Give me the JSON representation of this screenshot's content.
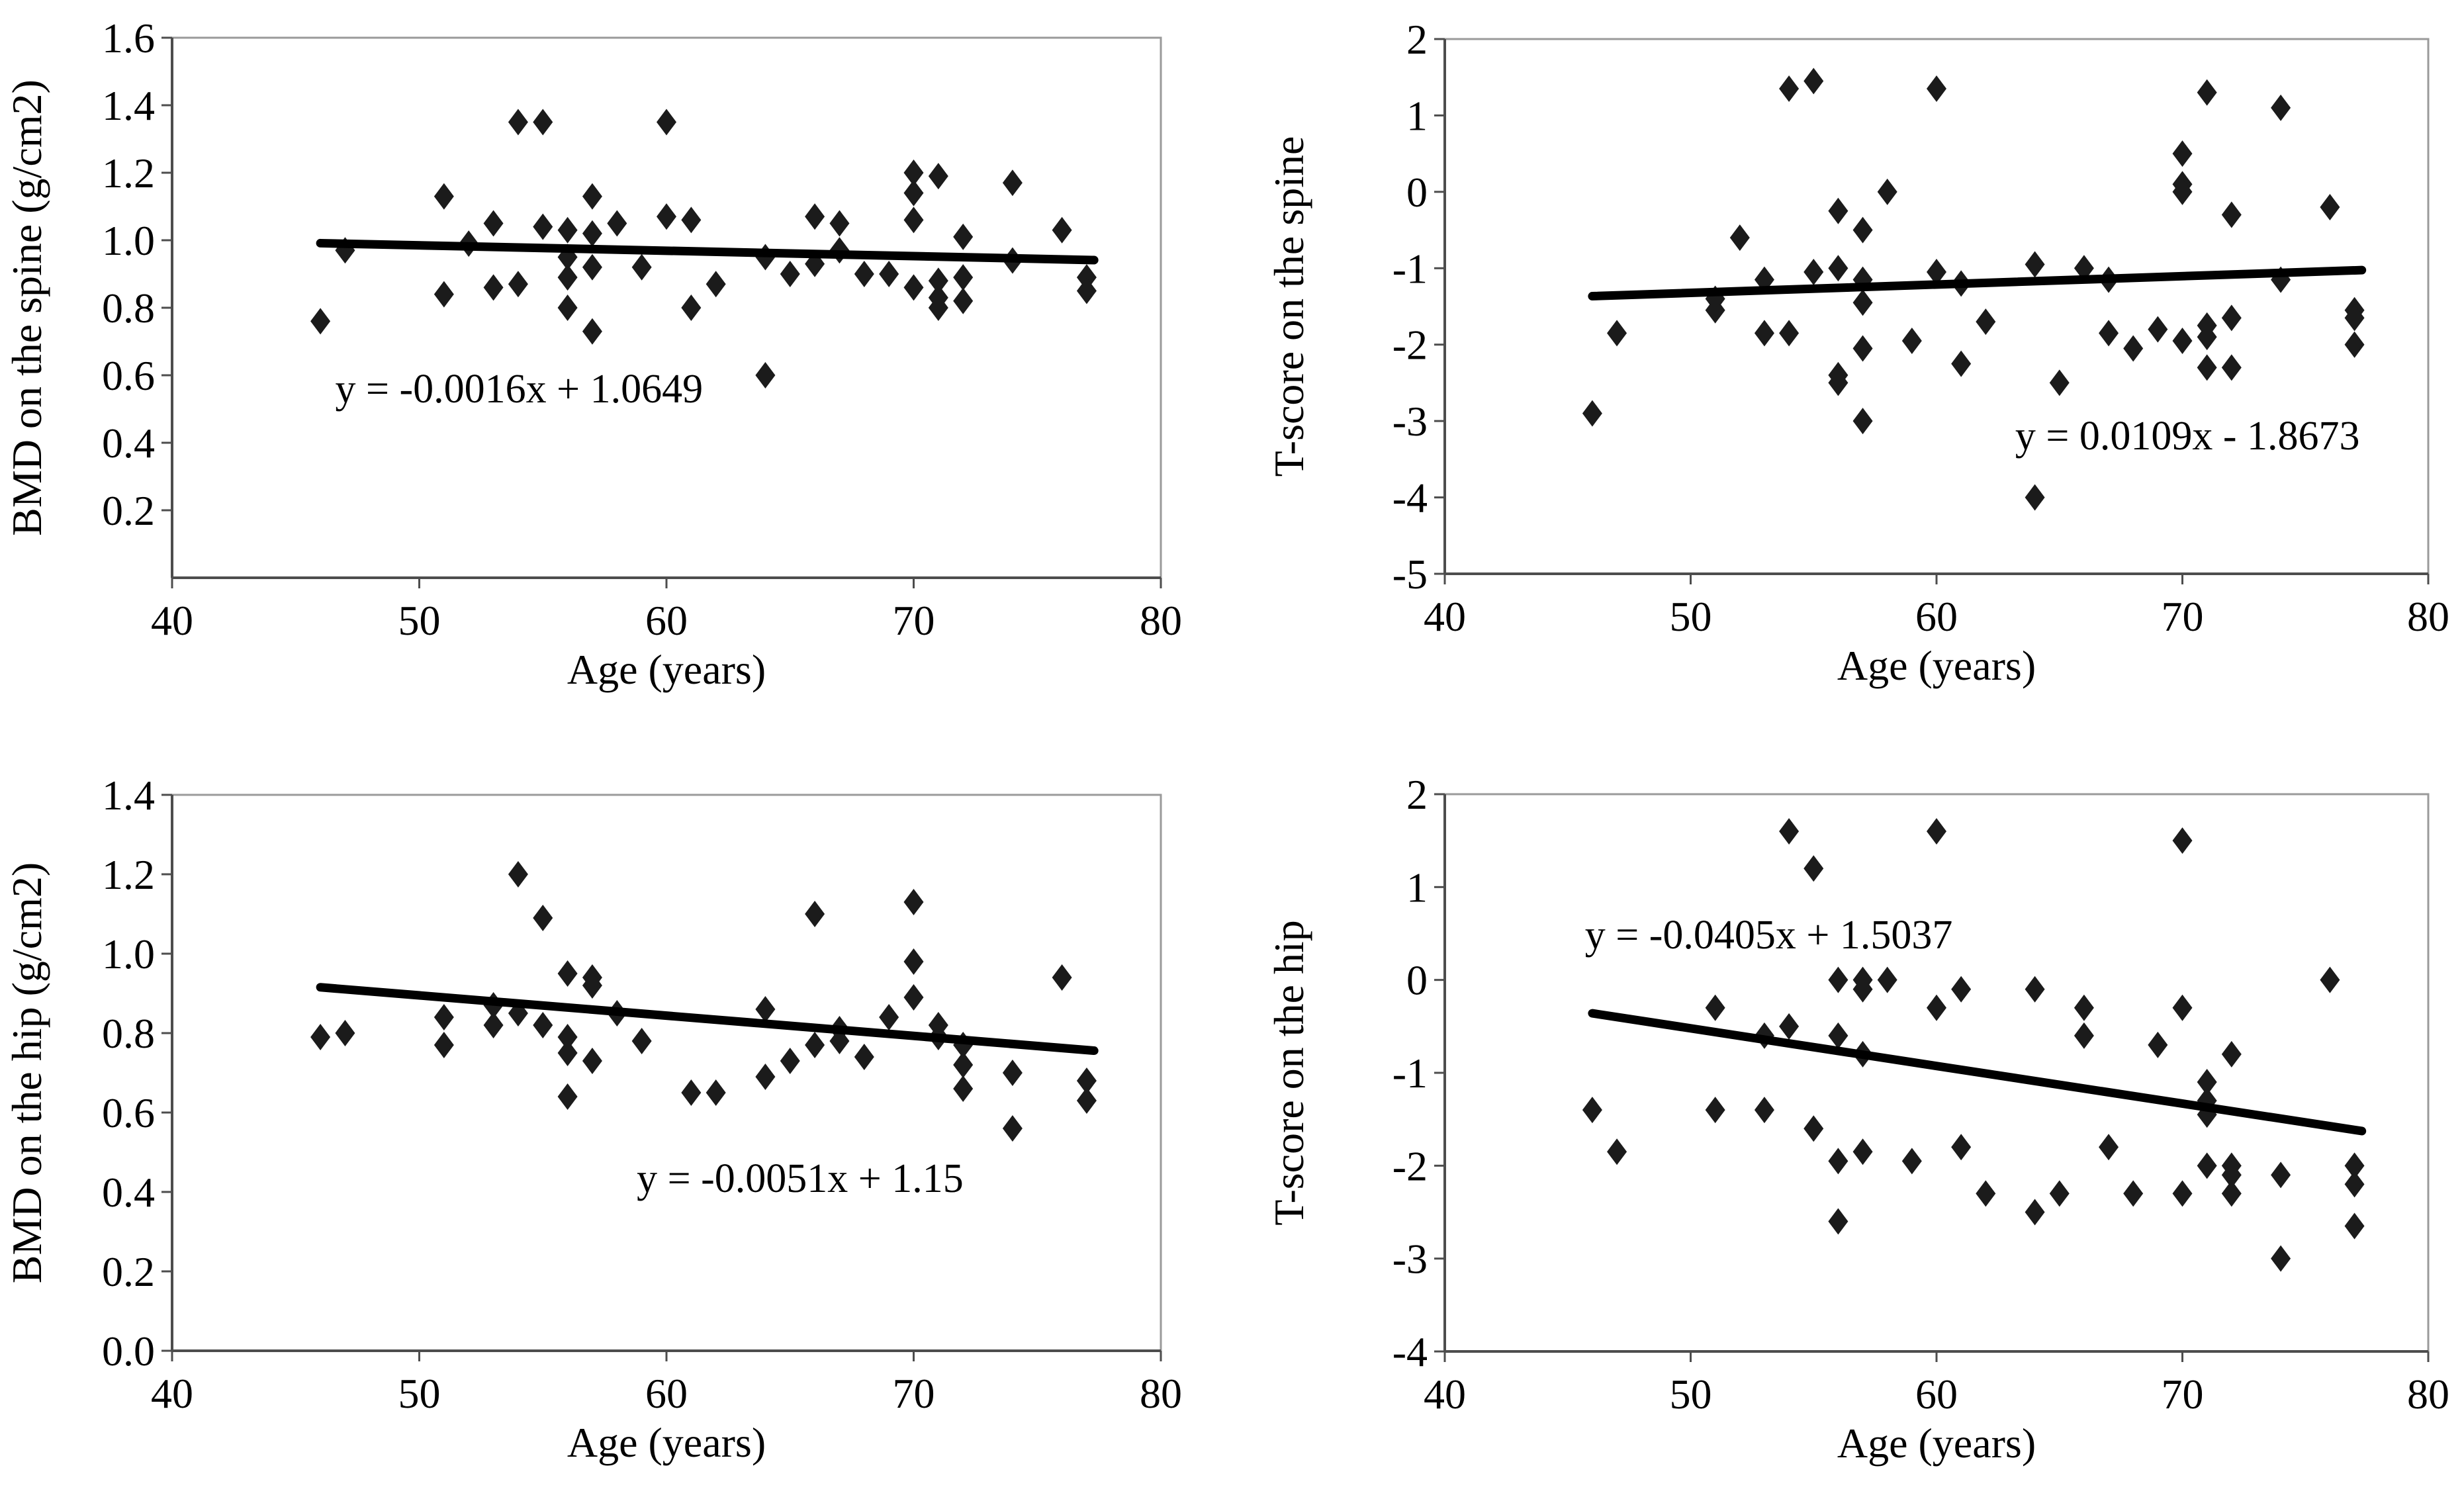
{
  "page": {
    "background": "#ffffff"
  },
  "colors": {
    "marker": "#1b1b1b",
    "trendline": "#000000",
    "plot_border": "#9a9a9a",
    "axis": "#4d4d4d",
    "tick": "#4d4d4d",
    "text": "#000000"
  },
  "chart_data": [
    {
      "id": "bmd_spine",
      "type": "scatter",
      "title": "",
      "xlabel": "Age (years)",
      "ylabel": "BMD on the spine (g/cm2)",
      "xlim": [
        40,
        80
      ],
      "ylim": [
        0,
        1.6
      ],
      "xticks": [
        40,
        50,
        60,
        70,
        80
      ],
      "xtick_labels": [
        "40",
        "50",
        "60",
        "70",
        "80"
      ],
      "yticks": [
        0.2,
        0.4,
        0.6,
        0.8,
        1.0,
        1.2,
        1.4,
        1.6
      ],
      "ytick_labels": [
        "0.2",
        "0.4",
        "0.6",
        "0.8",
        "1.0",
        "1.2",
        "1.4",
        "1.6"
      ],
      "grid": false,
      "legend": "none",
      "equation": {
        "text": "y = -0.0016x + 1.0649",
        "x": 46.6,
        "y": 0.52
      },
      "trendline": {
        "slope": -0.0016,
        "intercept": 1.0649,
        "x1": 46,
        "x2": 77.3
      },
      "points": [
        [
          46,
          0.76
        ],
        [
          47,
          0.97
        ],
        [
          51,
          1.13
        ],
        [
          51,
          0.84
        ],
        [
          52,
          0.99
        ],
        [
          53,
          1.05
        ],
        [
          53,
          0.86
        ],
        [
          54,
          1.35
        ],
        [
          54,
          0.87
        ],
        [
          55,
          1.35
        ],
        [
          55,
          1.04
        ],
        [
          56,
          1.03
        ],
        [
          56,
          0.95
        ],
        [
          56,
          0.89
        ],
        [
          56,
          0.8
        ],
        [
          57,
          1.13
        ],
        [
          57,
          1.02
        ],
        [
          57,
          0.92
        ],
        [
          57,
          0.73
        ],
        [
          58,
          1.05
        ],
        [
          59,
          0.92
        ],
        [
          60,
          1.35
        ],
        [
          60,
          1.07
        ],
        [
          61,
          1.06
        ],
        [
          61,
          0.8
        ],
        [
          62,
          0.87
        ],
        [
          64,
          0.95
        ],
        [
          64,
          0.6
        ],
        [
          65,
          0.9
        ],
        [
          66,
          1.07
        ],
        [
          66,
          0.93
        ],
        [
          67,
          1.05
        ],
        [
          67,
          0.97
        ],
        [
          68,
          0.9
        ],
        [
          69,
          0.9
        ],
        [
          70,
          1.2
        ],
        [
          70,
          1.14
        ],
        [
          70,
          1.06
        ],
        [
          70,
          0.86
        ],
        [
          71,
          1.19
        ],
        [
          71,
          0.88
        ],
        [
          71,
          0.83
        ],
        [
          71,
          0.8
        ],
        [
          72,
          1.01
        ],
        [
          72,
          0.89
        ],
        [
          72,
          0.82
        ],
        [
          74,
          1.17
        ],
        [
          74,
          0.94
        ],
        [
          76,
          1.03
        ],
        [
          77,
          0.89
        ],
        [
          77,
          0.85
        ]
      ]
    },
    {
      "id": "tscore_spine",
      "type": "scatter",
      "title": "",
      "xlabel": "Age (years)",
      "ylabel": "T-score on the spine",
      "xlim": [
        40,
        80
      ],
      "ylim": [
        -5,
        2
      ],
      "xticks": [
        40,
        50,
        60,
        70,
        80
      ],
      "xtick_labels": [
        "40",
        "50",
        "60",
        "70",
        "80"
      ],
      "yticks": [
        -5,
        -4,
        -3,
        -2,
        -1,
        0,
        1,
        2
      ],
      "ytick_labels": [
        "-5",
        "-4",
        "-3",
        "-2",
        "-1",
        "0",
        "1",
        "2"
      ],
      "grid": false,
      "legend": "none",
      "equation": {
        "text": "y = 0.0109x - 1.8673",
        "x": 63.2,
        "y": -3.37
      },
      "trendline": {
        "slope": 0.0109,
        "intercept": -1.8673,
        "x1": 46,
        "x2": 77.3
      },
      "points": [
        [
          46,
          -2.9
        ],
        [
          47,
          -1.85
        ],
        [
          51,
          -1.4
        ],
        [
          51,
          -1.55
        ],
        [
          52,
          -0.6
        ],
        [
          53,
          -1.15
        ],
        [
          53,
          -1.85
        ],
        [
          54,
          1.35
        ],
        [
          54,
          -1.85
        ],
        [
          55,
          1.45
        ],
        [
          55,
          -1.05
        ],
        [
          56,
          -0.25
        ],
        [
          56,
          -1.0
        ],
        [
          56,
          -2.4
        ],
        [
          56,
          -2.5
        ],
        [
          57,
          -0.5
        ],
        [
          57,
          -1.15
        ],
        [
          57,
          -1.45
        ],
        [
          57,
          -2.05
        ],
        [
          57,
          -3.0
        ],
        [
          58,
          0.0
        ],
        [
          59,
          -1.95
        ],
        [
          60,
          1.35
        ],
        [
          60,
          -1.05
        ],
        [
          61,
          -1.2
        ],
        [
          61,
          -2.25
        ],
        [
          62,
          -1.7
        ],
        [
          64,
          -0.95
        ],
        [
          64,
          -4.0
        ],
        [
          65,
          -2.5
        ],
        [
          66,
          -1.0
        ],
        [
          67,
          -1.15
        ],
        [
          67,
          -1.85
        ],
        [
          68,
          -2.05
        ],
        [
          69,
          -1.8
        ],
        [
          70,
          0.5
        ],
        [
          70,
          0.1
        ],
        [
          70,
          0.0
        ],
        [
          70,
          -1.95
        ],
        [
          71,
          1.3
        ],
        [
          71,
          -1.75
        ],
        [
          71,
          -1.9
        ],
        [
          71,
          -2.3
        ],
        [
          72,
          -0.3
        ],
        [
          72,
          -1.65
        ],
        [
          72,
          -2.3
        ],
        [
          74,
          1.1
        ],
        [
          74,
          -1.15
        ],
        [
          76,
          -0.2
        ],
        [
          77,
          -1.55
        ],
        [
          77,
          -1.65
        ],
        [
          77,
          -2.0
        ]
      ]
    },
    {
      "id": "bmd_hip",
      "type": "scatter",
      "title": "",
      "xlabel": "Age (years)",
      "ylabel": "BMD on the hip (g/cm2)",
      "xlim": [
        40,
        80
      ],
      "ylim": [
        0,
        1.4
      ],
      "xticks": [
        40,
        50,
        60,
        70,
        80
      ],
      "xtick_labels": [
        "40",
        "50",
        "60",
        "70",
        "80"
      ],
      "yticks": [
        0.0,
        0.2,
        0.4,
        0.6,
        0.8,
        1.0,
        1.2,
        1.4
      ],
      "ytick_labels": [
        "0.0",
        "0.2",
        "0.4",
        "0.6",
        "0.8",
        "1.0",
        "1.2",
        "1.4"
      ],
      "grid": false,
      "legend": "none",
      "equation": {
        "text": "y = -0.0051x + 1.15",
        "x": 58.8,
        "y": 0.4
      },
      "trendline": {
        "slope": -0.0051,
        "intercept": 1.15,
        "x1": 46,
        "x2": 77.3
      },
      "points": [
        [
          46,
          0.79
        ],
        [
          47,
          0.8
        ],
        [
          51,
          0.84
        ],
        [
          51,
          0.77
        ],
        [
          53,
          0.87
        ],
        [
          53,
          0.82
        ],
        [
          54,
          1.2
        ],
        [
          54,
          0.85
        ],
        [
          55,
          1.09
        ],
        [
          55,
          0.82
        ],
        [
          56,
          0.95
        ],
        [
          56,
          0.79
        ],
        [
          56,
          0.75
        ],
        [
          56,
          0.64
        ],
        [
          57,
          0.94
        ],
        [
          57,
          0.92
        ],
        [
          57,
          0.73
        ],
        [
          58,
          0.85
        ],
        [
          59,
          0.78
        ],
        [
          61,
          0.65
        ],
        [
          62,
          0.65
        ],
        [
          64,
          0.86
        ],
        [
          64,
          0.69
        ],
        [
          65,
          0.73
        ],
        [
          66,
          1.1
        ],
        [
          66,
          0.77
        ],
        [
          67,
          0.81
        ],
        [
          67,
          0.78
        ],
        [
          68,
          0.74
        ],
        [
          69,
          0.84
        ],
        [
          70,
          1.13
        ],
        [
          70,
          0.98
        ],
        [
          70,
          0.89
        ],
        [
          71,
          0.82
        ],
        [
          71,
          0.79
        ],
        [
          72,
          0.77
        ],
        [
          72,
          0.72
        ],
        [
          72,
          0.66
        ],
        [
          74,
          0.7
        ],
        [
          74,
          0.56
        ],
        [
          76,
          0.94
        ],
        [
          77,
          0.68
        ],
        [
          77,
          0.63
        ]
      ]
    },
    {
      "id": "tscore_hip",
      "type": "scatter",
      "title": "",
      "xlabel": "Age (years)",
      "ylabel": "T-score on the hip",
      "xlim": [
        40,
        80
      ],
      "ylim": [
        -4,
        2
      ],
      "xticks": [
        40,
        50,
        60,
        70,
        80
      ],
      "xtick_labels": [
        "40",
        "50",
        "60",
        "70",
        "80"
      ],
      "yticks": [
        -4,
        -3,
        -2,
        -1,
        0,
        1,
        2
      ],
      "ytick_labels": [
        "-4",
        "-3",
        "-2",
        "-1",
        "0",
        "1",
        "2"
      ],
      "grid": false,
      "legend": "none",
      "equation": {
        "text": "y = -0.0405x + 1.5037",
        "x": 45.7,
        "y": 0.34
      },
      "trendline": {
        "slope": -0.0405,
        "intercept": 1.5037,
        "x1": 46,
        "x2": 77.3
      },
      "points": [
        [
          46,
          -1.4
        ],
        [
          47,
          -1.85
        ],
        [
          51,
          -0.3
        ],
        [
          51,
          -1.4
        ],
        [
          53,
          -0.6
        ],
        [
          53,
          -1.4
        ],
        [
          54,
          1.6
        ],
        [
          54,
          -0.5
        ],
        [
          55,
          1.2
        ],
        [
          55,
          -1.6
        ],
        [
          56,
          0.0
        ],
        [
          56,
          -0.6
        ],
        [
          56,
          -1.95
        ],
        [
          56,
          -2.6
        ],
        [
          57,
          0.0
        ],
        [
          57,
          -0.1
        ],
        [
          57,
          -0.8
        ],
        [
          57,
          -1.85
        ],
        [
          58,
          0.0
        ],
        [
          59,
          -1.95
        ],
        [
          60,
          1.6
        ],
        [
          60,
          -0.3
        ],
        [
          61,
          -0.1
        ],
        [
          61,
          -1.8
        ],
        [
          62,
          -2.3
        ],
        [
          64,
          -0.1
        ],
        [
          64,
          -2.5
        ],
        [
          65,
          -2.3
        ],
        [
          66,
          -0.3
        ],
        [
          66,
          -0.6
        ],
        [
          67,
          -1.8
        ],
        [
          68,
          -2.3
        ],
        [
          69,
          -0.7
        ],
        [
          70,
          1.5
        ],
        [
          70,
          -0.3
        ],
        [
          70,
          -2.3
        ],
        [
          71,
          -1.1
        ],
        [
          71,
          -1.3
        ],
        [
          71,
          -1.45
        ],
        [
          71,
          -2.0
        ],
        [
          72,
          -0.8
        ],
        [
          72,
          -2.0
        ],
        [
          72,
          -2.1
        ],
        [
          72,
          -2.3
        ],
        [
          74,
          -2.1
        ],
        [
          74,
          -3.0
        ],
        [
          76,
          0.0
        ],
        [
          77,
          -2.0
        ],
        [
          77,
          -2.2
        ],
        [
          77,
          -2.65
        ]
      ]
    }
  ]
}
